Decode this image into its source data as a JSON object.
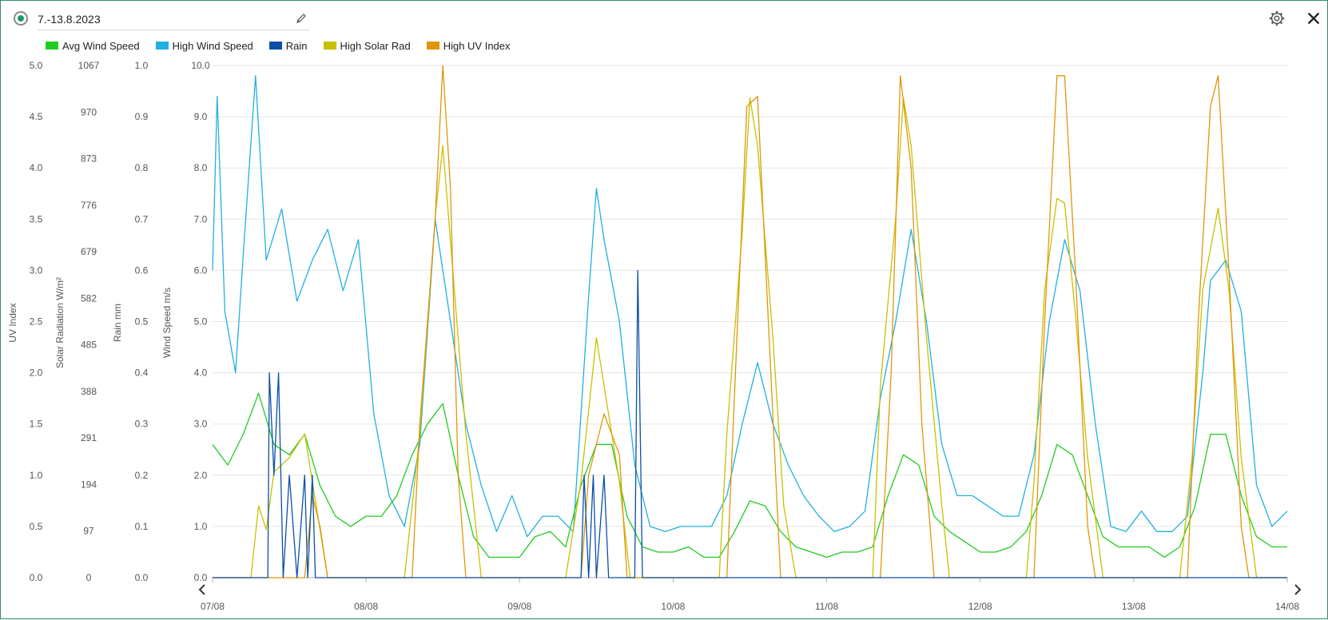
{
  "header": {
    "date_range": "7.-13.8.2023",
    "status_icon": "radio-selected-icon",
    "edit_icon": "pencil-icon",
    "settings_icon": "gear-icon",
    "close_icon": "close-icon"
  },
  "legend": [
    {
      "label": "Avg Wind Speed",
      "color": "#22cc22"
    },
    {
      "label": "High Wind Speed",
      "color": "#22b0e0"
    },
    {
      "label": "Rain",
      "color": "#0b4fa8"
    },
    {
      "label": "High Solar Rad",
      "color": "#c8c000"
    },
    {
      "label": "High UV Index",
      "color": "#e0960a"
    }
  ],
  "chart_data": {
    "type": "line",
    "x_ticks": [
      "07/08",
      "08/08",
      "09/08",
      "10/08",
      "11/08",
      "12/08",
      "13/08",
      "14/08"
    ],
    "axes": [
      {
        "id": "uv",
        "label": "UV Index",
        "ticks": [
          "5.0",
          "4.5",
          "4.0",
          "3.5",
          "3.0",
          "2.5",
          "2.0",
          "1.5",
          "1.0",
          "0.5",
          "0.0"
        ],
        "range": [
          0,
          5
        ]
      },
      {
        "id": "solar",
        "label": "Solar Radiation W/m²",
        "ticks": [
          "1067",
          "970",
          "873",
          "776",
          "679",
          "582",
          "485",
          "388",
          "291",
          "194",
          "97",
          "0"
        ],
        "range": [
          0,
          1067
        ]
      },
      {
        "id": "rain",
        "label": "Rain mm",
        "ticks": [
          "1.0",
          "0.9",
          "0.8",
          "0.7",
          "0.6",
          "0.5",
          "0.4",
          "0.3",
          "0.2",
          "0.1",
          "0.0"
        ],
        "range": [
          0,
          1
        ]
      },
      {
        "id": "wind",
        "label": "Wind Speed m/s",
        "ticks": [
          "10.0",
          "9.0",
          "8.0",
          "7.0",
          "6.0",
          "5.0",
          "4.0",
          "3.0",
          "2.0",
          "1.0",
          "0.0"
        ],
        "range": [
          0,
          10
        ]
      }
    ],
    "series": [
      {
        "name": "Avg Wind Speed",
        "axis": "wind",
        "color": "#22cc22",
        "points": [
          [
            7.0,
            2.6
          ],
          [
            7.1,
            2.2
          ],
          [
            7.2,
            2.8
          ],
          [
            7.3,
            3.6
          ],
          [
            7.4,
            2.6
          ],
          [
            7.5,
            2.4
          ],
          [
            7.6,
            2.8
          ],
          [
            7.7,
            1.8
          ],
          [
            7.8,
            1.2
          ],
          [
            7.9,
            1.0
          ],
          [
            8.0,
            1.2
          ],
          [
            8.1,
            1.2
          ],
          [
            8.2,
            1.6
          ],
          [
            8.3,
            2.4
          ],
          [
            8.4,
            3.0
          ],
          [
            8.5,
            3.4
          ],
          [
            8.6,
            2.0
          ],
          [
            8.7,
            0.8
          ],
          [
            8.8,
            0.4
          ],
          [
            8.9,
            0.4
          ],
          [
            9.0,
            0.4
          ],
          [
            9.1,
            0.8
          ],
          [
            9.2,
            0.9
          ],
          [
            9.3,
            0.6
          ],
          [
            9.4,
            1.8
          ],
          [
            9.5,
            2.6
          ],
          [
            9.6,
            2.6
          ],
          [
            9.7,
            1.2
          ],
          [
            9.8,
            0.6
          ],
          [
            9.9,
            0.5
          ],
          [
            10.0,
            0.5
          ],
          [
            10.1,
            0.6
          ],
          [
            10.2,
            0.4
          ],
          [
            10.3,
            0.4
          ],
          [
            10.4,
            0.9
          ],
          [
            10.5,
            1.5
          ],
          [
            10.6,
            1.4
          ],
          [
            10.7,
            0.9
          ],
          [
            10.8,
            0.6
          ],
          [
            10.9,
            0.5
          ],
          [
            11.0,
            0.4
          ],
          [
            11.1,
            0.5
          ],
          [
            11.2,
            0.5
          ],
          [
            11.3,
            0.6
          ],
          [
            11.4,
            1.6
          ],
          [
            11.5,
            2.4
          ],
          [
            11.6,
            2.2
          ],
          [
            11.7,
            1.2
          ],
          [
            11.8,
            0.9
          ],
          [
            11.9,
            0.7
          ],
          [
            12.0,
            0.5
          ],
          [
            12.1,
            0.5
          ],
          [
            12.2,
            0.6
          ],
          [
            12.3,
            0.9
          ],
          [
            12.4,
            1.6
          ],
          [
            12.5,
            2.6
          ],
          [
            12.6,
            2.4
          ],
          [
            12.7,
            1.6
          ],
          [
            12.8,
            0.8
          ],
          [
            12.9,
            0.6
          ],
          [
            13.0,
            0.6
          ],
          [
            13.1,
            0.6
          ],
          [
            13.2,
            0.4
          ],
          [
            13.3,
            0.6
          ],
          [
            13.4,
            1.4
          ],
          [
            13.5,
            2.8
          ],
          [
            13.6,
            2.8
          ],
          [
            13.7,
            1.6
          ],
          [
            13.8,
            0.8
          ],
          [
            13.9,
            0.6
          ],
          [
            14.0,
            0.6
          ]
        ]
      },
      {
        "name": "High Wind Speed",
        "axis": "wind",
        "color": "#22b0e0",
        "points": [
          [
            7.0,
            6.0
          ],
          [
            7.03,
            9.4
          ],
          [
            7.08,
            5.2
          ],
          [
            7.15,
            4.0
          ],
          [
            7.2,
            6.3
          ],
          [
            7.28,
            9.8
          ],
          [
            7.35,
            6.2
          ],
          [
            7.45,
            7.2
          ],
          [
            7.55,
            5.4
          ],
          [
            7.65,
            6.2
          ],
          [
            7.75,
            6.8
          ],
          [
            7.85,
            5.6
          ],
          [
            7.95,
            6.6
          ],
          [
            8.05,
            3.2
          ],
          [
            8.15,
            1.6
          ],
          [
            8.25,
            1.0
          ],
          [
            8.35,
            2.6
          ],
          [
            8.45,
            7.0
          ],
          [
            8.55,
            5.0
          ],
          [
            8.65,
            3.0
          ],
          [
            8.75,
            1.8
          ],
          [
            8.85,
            0.9
          ],
          [
            8.95,
            1.6
          ],
          [
            9.05,
            0.8
          ],
          [
            9.15,
            1.2
          ],
          [
            9.25,
            1.2
          ],
          [
            9.35,
            0.9
          ],
          [
            9.45,
            5.5
          ],
          [
            9.5,
            7.6
          ],
          [
            9.55,
            6.6
          ],
          [
            9.65,
            5.0
          ],
          [
            9.75,
            2.2
          ],
          [
            9.85,
            1.0
          ],
          [
            9.95,
            0.9
          ],
          [
            10.05,
            1.0
          ],
          [
            10.15,
            1.0
          ],
          [
            10.25,
            1.0
          ],
          [
            10.35,
            1.6
          ],
          [
            10.45,
            3.0
          ],
          [
            10.55,
            4.2
          ],
          [
            10.65,
            3.0
          ],
          [
            10.75,
            2.2
          ],
          [
            10.85,
            1.6
          ],
          [
            10.95,
            1.2
          ],
          [
            11.05,
            0.9
          ],
          [
            11.15,
            1.0
          ],
          [
            11.25,
            1.3
          ],
          [
            11.35,
            3.5
          ],
          [
            11.45,
            5.0
          ],
          [
            11.55,
            6.8
          ],
          [
            11.65,
            5.0
          ],
          [
            11.75,
            2.6
          ],
          [
            11.85,
            1.6
          ],
          [
            11.95,
            1.6
          ],
          [
            12.05,
            1.4
          ],
          [
            12.15,
            1.2
          ],
          [
            12.25,
            1.2
          ],
          [
            12.35,
            2.4
          ],
          [
            12.45,
            5.0
          ],
          [
            12.55,
            6.6
          ],
          [
            12.65,
            5.6
          ],
          [
            12.75,
            3.0
          ],
          [
            12.85,
            1.0
          ],
          [
            12.95,
            0.9
          ],
          [
            13.05,
            1.3
          ],
          [
            13.15,
            0.9
          ],
          [
            13.25,
            0.9
          ],
          [
            13.35,
            1.2
          ],
          [
            13.45,
            4.0
          ],
          [
            13.5,
            5.8
          ],
          [
            13.6,
            6.2
          ],
          [
            13.7,
            5.2
          ],
          [
            13.8,
            1.8
          ],
          [
            13.9,
            1.0
          ],
          [
            14.0,
            1.3
          ]
        ]
      },
      {
        "name": "Rain",
        "axis": "rain",
        "color": "#0b4fa8",
        "points": [
          [
            7.0,
            0.0
          ],
          [
            7.36,
            0.0
          ],
          [
            7.37,
            0.4
          ],
          [
            7.4,
            0.2
          ],
          [
            7.43,
            0.4
          ],
          [
            7.46,
            0.0
          ],
          [
            7.5,
            0.2
          ],
          [
            7.55,
            0.0
          ],
          [
            7.6,
            0.2
          ],
          [
            7.62,
            0.0
          ],
          [
            7.65,
            0.2
          ],
          [
            7.67,
            0.0
          ],
          [
            9.4,
            0.0
          ],
          [
            9.42,
            0.2
          ],
          [
            9.45,
            0.0
          ],
          [
            9.48,
            0.2
          ],
          [
            9.5,
            0.0
          ],
          [
            9.55,
            0.2
          ],
          [
            9.58,
            0.0
          ],
          [
            9.75,
            0.0
          ],
          [
            9.77,
            0.6
          ],
          [
            9.79,
            0.2
          ],
          [
            9.8,
            0.0
          ],
          [
            14.0,
            0.0
          ]
        ]
      },
      {
        "name": "High Solar Rad",
        "axis": "solar",
        "color": "#c8c000",
        "points": [
          [
            7.0,
            0
          ],
          [
            7.25,
            0
          ],
          [
            7.3,
            150
          ],
          [
            7.35,
            100
          ],
          [
            7.4,
            220
          ],
          [
            7.5,
            250
          ],
          [
            7.6,
            300
          ],
          [
            7.65,
            200
          ],
          [
            7.7,
            100
          ],
          [
            7.75,
            0
          ],
          [
            8.25,
            0
          ],
          [
            8.35,
            300
          ],
          [
            8.45,
            750
          ],
          [
            8.5,
            900
          ],
          [
            8.55,
            700
          ],
          [
            8.65,
            300
          ],
          [
            8.75,
            0
          ],
          [
            9.3,
            0
          ],
          [
            9.4,
            200
          ],
          [
            9.5,
            500
          ],
          [
            9.55,
            400
          ],
          [
            9.65,
            200
          ],
          [
            9.72,
            0
          ],
          [
            10.3,
            0
          ],
          [
            10.35,
            300
          ],
          [
            10.45,
            720
          ],
          [
            10.5,
            1000
          ],
          [
            10.55,
            900
          ],
          [
            10.65,
            500
          ],
          [
            10.72,
            150
          ],
          [
            10.8,
            0
          ],
          [
            11.3,
            0
          ],
          [
            11.35,
            400
          ],
          [
            11.45,
            750
          ],
          [
            11.5,
            1000
          ],
          [
            11.55,
            900
          ],
          [
            11.65,
            500
          ],
          [
            11.75,
            150
          ],
          [
            11.8,
            0
          ],
          [
            12.3,
            0
          ],
          [
            12.35,
            200
          ],
          [
            12.42,
            600
          ],
          [
            12.5,
            790
          ],
          [
            12.55,
            780
          ],
          [
            12.62,
            550
          ],
          [
            12.7,
            250
          ],
          [
            12.8,
            0
          ],
          [
            13.3,
            0
          ],
          [
            13.38,
            250
          ],
          [
            13.45,
            600
          ],
          [
            13.55,
            770
          ],
          [
            13.62,
            600
          ],
          [
            13.7,
            250
          ],
          [
            13.8,
            0
          ],
          [
            14.0,
            0
          ]
        ]
      },
      {
        "name": "High UV Index",
        "axis": "uv",
        "color": "#e0960a",
        "points": [
          [
            7.0,
            0
          ],
          [
            7.6,
            0
          ],
          [
            7.65,
            0.8
          ],
          [
            7.7,
            0.5
          ],
          [
            7.75,
            0
          ],
          [
            8.3,
            0
          ],
          [
            8.35,
            1.5
          ],
          [
            8.45,
            3.5
          ],
          [
            8.5,
            5.0
          ],
          [
            8.55,
            3.8
          ],
          [
            8.6,
            1.0
          ],
          [
            8.65,
            0
          ],
          [
            9.4,
            0
          ],
          [
            9.45,
            1.0
          ],
          [
            9.55,
            1.6
          ],
          [
            9.65,
            1.2
          ],
          [
            9.7,
            0
          ],
          [
            10.35,
            0
          ],
          [
            10.42,
            2.5
          ],
          [
            10.48,
            4.6
          ],
          [
            10.55,
            4.7
          ],
          [
            10.62,
            2.5
          ],
          [
            10.7,
            0
          ],
          [
            11.35,
            0
          ],
          [
            11.42,
            2.0
          ],
          [
            11.48,
            4.9
          ],
          [
            11.55,
            4.0
          ],
          [
            11.62,
            1.5
          ],
          [
            11.7,
            0
          ],
          [
            12.35,
            0
          ],
          [
            12.42,
            2.5
          ],
          [
            12.5,
            4.9
          ],
          [
            12.55,
            4.9
          ],
          [
            12.62,
            3.0
          ],
          [
            12.7,
            0.5
          ],
          [
            12.75,
            0
          ],
          [
            13.35,
            0
          ],
          [
            13.42,
            2.5
          ],
          [
            13.5,
            4.6
          ],
          [
            13.55,
            4.9
          ],
          [
            13.62,
            3.0
          ],
          [
            13.7,
            0.5
          ],
          [
            13.75,
            0
          ],
          [
            14.0,
            0
          ]
        ]
      }
    ],
    "grid": true,
    "legend_position": "top-left"
  }
}
